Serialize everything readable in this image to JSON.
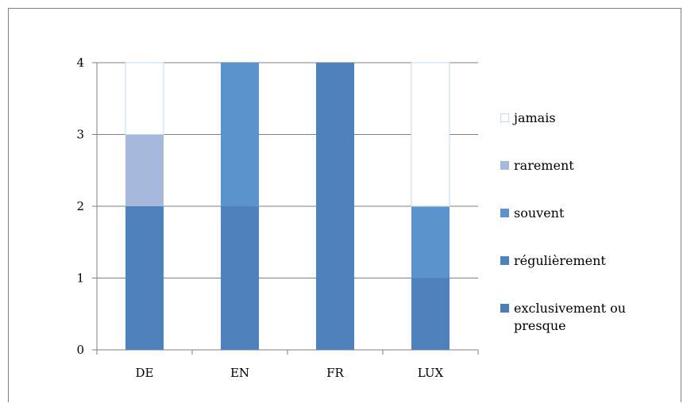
{
  "chart_data": {
    "type": "bar",
    "stacked": true,
    "categories": [
      "DE",
      "EN",
      "FR",
      "LUX"
    ],
    "series": [
      {
        "name": "exclusivement ou presque",
        "color": "#4a7eb4",
        "values": [
          0,
          0,
          0,
          0
        ]
      },
      {
        "name": "régulièrement",
        "color": "#4f81bd",
        "values": [
          2,
          2,
          4,
          1
        ]
      },
      {
        "name": "souvent",
        "color": "#5b94cc",
        "values": [
          0,
          2,
          0,
          1
        ]
      },
      {
        "name": "rarement",
        "color": "#a6b8db",
        "values": [
          1,
          0,
          0,
          0
        ]
      },
      {
        "name": "jamais",
        "color": "#ffffff",
        "stroke": "#c6d9f1",
        "values": [
          1,
          0,
          0,
          2
        ]
      }
    ],
    "ylim": [
      0,
      4
    ],
    "yticks": [
      0,
      1,
      2,
      3,
      4
    ],
    "grid": true,
    "legend_position": "right"
  },
  "legend": {
    "items": [
      {
        "label": "jamais",
        "color": "#ffffff",
        "stroke": "#c6d9f1"
      },
      {
        "label": "rarement",
        "color": "#a6b8db"
      },
      {
        "label": "souvent",
        "color": "#5b94cc"
      },
      {
        "label": "régulièrement",
        "color": "#4f81bd"
      },
      {
        "label": "exclusivement ou presque",
        "color": "#4a7eb4"
      }
    ]
  }
}
